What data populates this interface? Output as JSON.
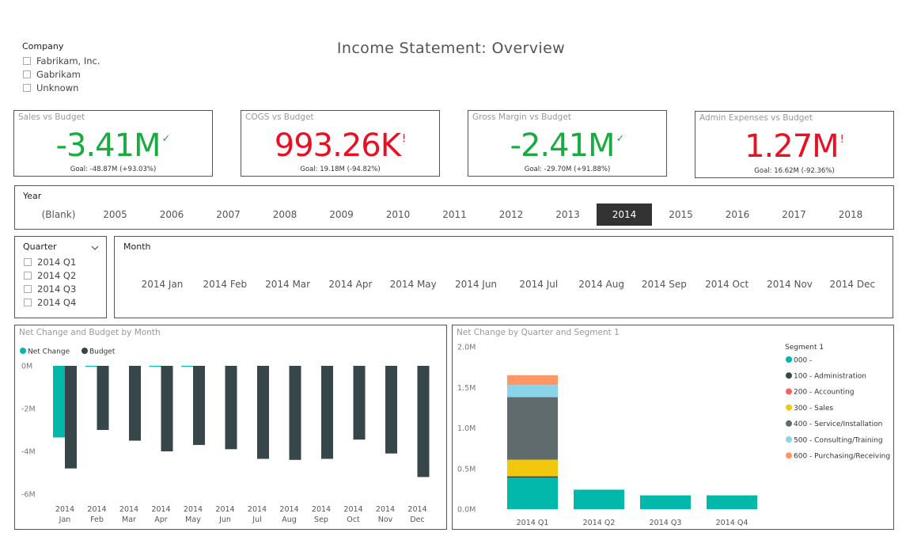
{
  "page_title": "Income Statement:  Overview",
  "company_slicer": {
    "title": "Company",
    "items": [
      "Fabrikam, Inc.",
      "Gabrikam",
      "Unknown"
    ]
  },
  "kpis": [
    {
      "title": "Sales vs Budget",
      "value": "-3.41M",
      "flag": "✓",
      "status": "good",
      "goal": "Goal: -48.87M (+93.03%)"
    },
    {
      "title": "COGS vs Budget",
      "value": "993.26K",
      "flag": "!",
      "status": "bad",
      "goal": "Goal: 19.18M (-94.82%)"
    },
    {
      "title": "Gross Margin vs Budget",
      "value": "-2.41M",
      "flag": "✓",
      "status": "good",
      "goal": "Goal: -29.70M (+91.88%)"
    },
    {
      "title": "Admin Expenses vs Budget",
      "value": "1.27M",
      "flag": "!",
      "status": "bad",
      "goal": "Goal: 16.62M (-92.36%)"
    }
  ],
  "colors": {
    "good": "#1aab40",
    "bad": "#e81123",
    "teal": "#01b8aa",
    "dark": "#374649"
  },
  "year_slicer": {
    "title": "Year",
    "items": [
      "(Blank)",
      "2005",
      "2006",
      "2007",
      "2008",
      "2009",
      "2010",
      "2011",
      "2012",
      "2013",
      "2014",
      "2015",
      "2016",
      "2017",
      "2018"
    ],
    "selected": "2014"
  },
  "quarter_slicer": {
    "title": "Quarter",
    "chevron_icon": "chevron-down-icon",
    "items": [
      "2014 Q1",
      "2014 Q2",
      "2014 Q3",
      "2014 Q4"
    ]
  },
  "month_slicer": {
    "title": "Month",
    "items": [
      "2014 Jan",
      "2014 Feb",
      "2014 Mar",
      "2014 Apr",
      "2014 May",
      "2014 Jun",
      "2014 Jul",
      "2014 Aug",
      "2014 Sep",
      "2014 Oct",
      "2014 Nov",
      "2014 Dec"
    ]
  },
  "chart_data": [
    {
      "type": "bar",
      "title": "Net Change and Budget by Month",
      "categories": [
        "2014 Jan",
        "2014 Feb",
        "2014 Mar",
        "2014 Apr",
        "2014 May",
        "2014 Jun",
        "2014 Jul",
        "2014 Aug",
        "2014 Sep",
        "2014 Oct",
        "2014 Nov",
        "2014 Dec"
      ],
      "series": [
        {
          "name": "Net Change",
          "color": "#01b8aa",
          "values": [
            -3.35,
            -0.03,
            0,
            -0.03,
            -0.03,
            0,
            0,
            0,
            0,
            0,
            0,
            0
          ]
        },
        {
          "name": "Budget",
          "color": "#374649",
          "values": [
            -4.8,
            -3.0,
            -3.5,
            -4.0,
            -3.7,
            -3.9,
            -4.35,
            -4.4,
            -4.35,
            -3.45,
            -4.1,
            -5.2
          ]
        }
      ],
      "yticks": [
        "0M",
        "-2M",
        "-4M",
        "-6M"
      ],
      "ylim": [
        -6,
        0
      ],
      "legend": "top-left",
      "xlabel": "",
      "ylabel": ""
    },
    {
      "type": "bar",
      "stacked": true,
      "title": "Net Change by Quarter and Segment 1",
      "categories": [
        "2014 Q1",
        "2014 Q2",
        "2014 Q3",
        "2014 Q4"
      ],
      "legend_title": "Segment 1",
      "series": [
        {
          "name": "000 -",
          "color": "#01b8aa",
          "values": [
            0.39,
            0.24,
            0.17,
            0.17
          ]
        },
        {
          "name": "100 - Administration",
          "color": "#374649",
          "values": [
            0.01,
            0,
            0,
            0
          ]
        },
        {
          "name": "200 - Accounting",
          "color": "#fd625e",
          "values": [
            0.01,
            0,
            0,
            0
          ]
        },
        {
          "name": "300 - Sales",
          "color": "#f2c80f",
          "values": [
            0.2,
            0,
            0,
            0
          ]
        },
        {
          "name": "400 - Service/Installation",
          "color": "#5f6b6d",
          "values": [
            0.77,
            0,
            0,
            0
          ]
        },
        {
          "name": "500 - Consulting/Training",
          "color": "#8ad4eb",
          "values": [
            0.15,
            0,
            0,
            0
          ]
        },
        {
          "name": "600 - Purchasing/Receiving",
          "color": "#fe9666",
          "values": [
            0.12,
            0,
            0,
            0
          ]
        }
      ],
      "yticks": [
        "0.0M",
        "0.5M",
        "1.0M",
        "1.5M",
        "2.0M"
      ],
      "ylim": [
        0,
        2.0
      ],
      "legend": "right",
      "xlabel": "",
      "ylabel": ""
    }
  ]
}
